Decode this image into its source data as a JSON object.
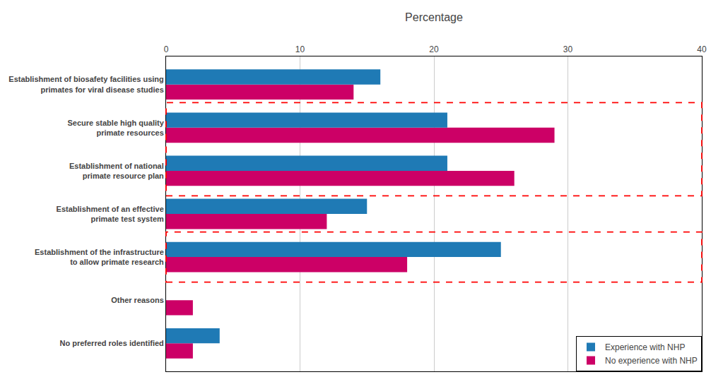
{
  "chart_data": {
    "type": "bar",
    "orientation": "horizontal",
    "xlabel": "Percentage",
    "categories": [
      "No preferred roles identified",
      "Other reasons",
      "Establishment of the infrastructure\nto allow primate research",
      "Establishment of an effective\nprimate test system",
      "Establishment of national\nprimate resource plan",
      "Secure stable high quality\nprimate resources",
      "Establishment of biosafety facilities using\nprimates for viral disease studies"
    ],
    "series": [
      {
        "name": "Experience with NHP",
        "color": "#1f7ab5",
        "values": [
          4,
          0,
          25,
          15,
          21,
          21,
          16
        ]
      },
      {
        "name": "No experience with NHP",
        "color": "#cc0066",
        "values": [
          2,
          2,
          18,
          12,
          26,
          29,
          14
        ]
      }
    ],
    "xlim": [
      0,
      40
    ],
    "xticks": [
      0,
      10,
      20,
      30,
      40
    ],
    "grid": true,
    "legend": "lower right"
  }
}
